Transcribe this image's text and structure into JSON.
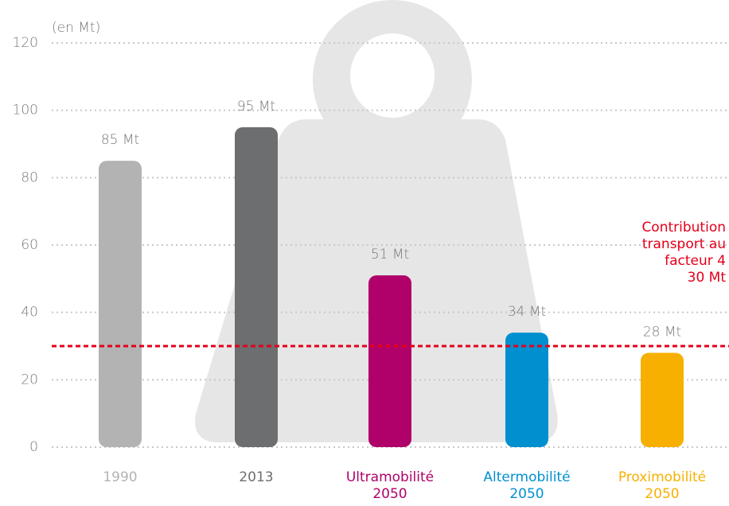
{
  "chart_data": {
    "type": "bar",
    "unit_label": "(en Mt)",
    "categories": [
      "1990",
      "2013",
      "Ultramobilité\n2050",
      "Altermobilité\n2050",
      "Proximobilité\n2050"
    ],
    "values": [
      85,
      95,
      51,
      34,
      28
    ],
    "value_labels": [
      "85 Mt",
      "95 Mt",
      "51 Mt",
      "34 Mt",
      "28 Mt"
    ],
    "colors": [
      "#b3b3b3",
      "#6d6e70",
      "#b0006a",
      "#0090d0",
      "#f7b000"
    ],
    "ylim": [
      0,
      120
    ],
    "yticks": [
      0,
      20,
      40,
      60,
      80,
      100,
      120
    ],
    "grid": true,
    "reference_line": {
      "value": 30,
      "label": "Contribution\ntransport au\nfacteur 4\n30 Mt",
      "color": "#e3001b"
    }
  }
}
